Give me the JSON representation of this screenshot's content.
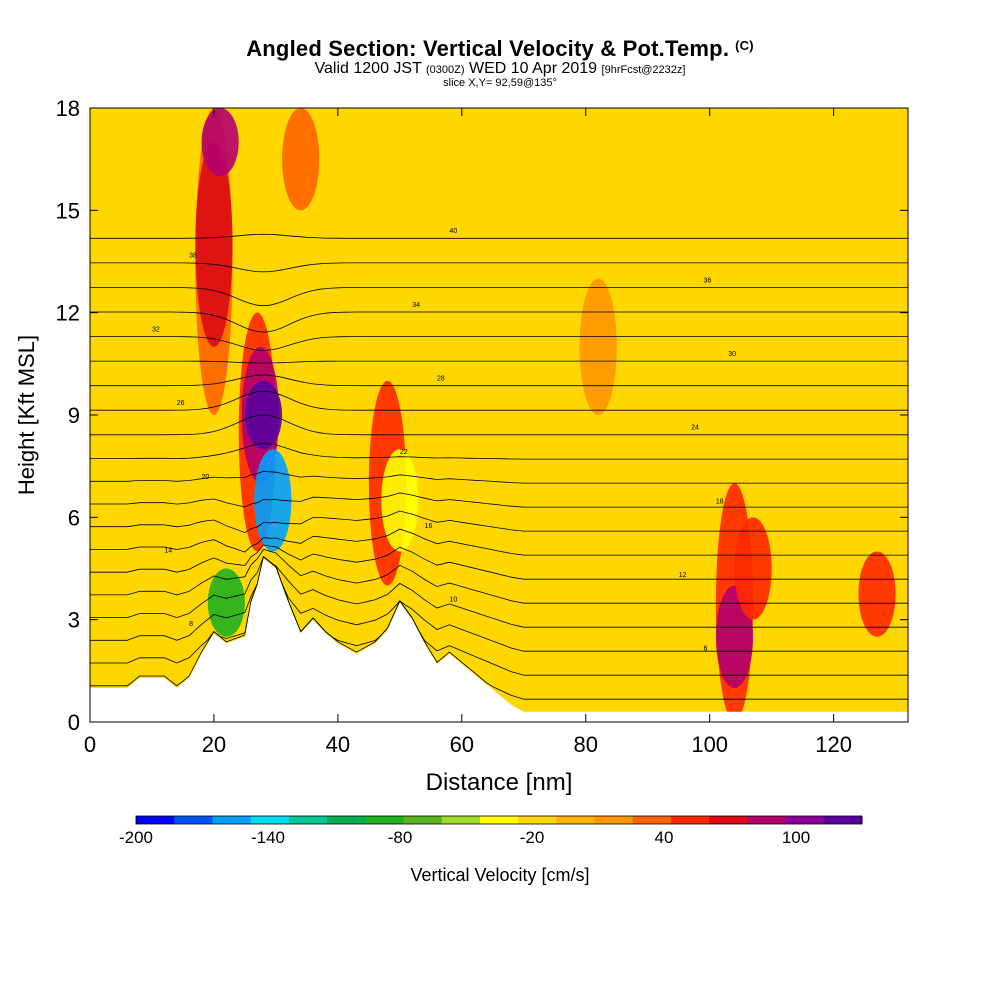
{
  "title": {
    "main": "Angled Section: Vertical Velocity & Pot.Temp.",
    "unit": "(C)",
    "valid_prefix": "Valid 1200 JST",
    "utc": "(0300Z)",
    "date": "WED 10 Apr 2019",
    "forecast": "[9hrFcst@2232z]",
    "slice": "slice X,Y= 92,59@135°"
  },
  "chart_data": {
    "type": "heatmap",
    "xlabel": "Distance [nm]",
    "ylabel": "Height [Kft MSL]",
    "xlim": [
      0,
      132
    ],
    "ylim": [
      0,
      18
    ],
    "x_ticks": [
      0,
      20,
      40,
      60,
      80,
      100,
      120
    ],
    "y_ticks": [
      0,
      3,
      6,
      9,
      12,
      15,
      18
    ],
    "colorbar": {
      "label": "Vertical Velocity [cm/s]",
      "min": -200,
      "max": 130,
      "tick_labels": [
        -200,
        -140,
        -80,
        -20,
        40,
        100
      ],
      "colors": [
        "#0000ff",
        "#0050ff",
        "#00a0ff",
        "#00ddee",
        "#00c896",
        "#00b050",
        "#20b020",
        "#5ab41e",
        "#a0dc28",
        "#ffff00",
        "#ffd700",
        "#ffb400",
        "#ff9600",
        "#ff6400",
        "#ff2800",
        "#dc0a14",
        "#b4006e",
        "#8c00a0",
        "#5a00a0"
      ]
    },
    "background_value": -10,
    "cells": [
      {
        "x": 20,
        "z0": 9,
        "z1": 18,
        "w": 40
      },
      {
        "x": 20,
        "z0": 11,
        "z1": 17,
        "w": 70
      },
      {
        "x": 21,
        "z0": 16,
        "z1": 18,
        "w": 80
      },
      {
        "x": 27,
        "z0": 5,
        "z1": 12,
        "w": 60
      },
      {
        "x": 27.5,
        "z0": 7,
        "z1": 11,
        "w": 90
      },
      {
        "x": 28,
        "z0": 8,
        "z1": 10,
        "w": 120
      },
      {
        "x": 29.5,
        "z0": 5,
        "z1": 8,
        "w": -150
      },
      {
        "x": 22,
        "z0": 2.5,
        "z1": 4.5,
        "w": -80
      },
      {
        "x": 48,
        "z0": 4,
        "z1": 10,
        "w": 50
      },
      {
        "x": 50,
        "z0": 5,
        "z1": 8,
        "w": -30
      },
      {
        "x": 34,
        "z0": 15,
        "z1": 18,
        "w": 40
      },
      {
        "x": 104,
        "z0": 0,
        "z1": 7,
        "w": 50
      },
      {
        "x": 104,
        "z0": 1,
        "z1": 4,
        "w": 80
      },
      {
        "x": 107,
        "z0": 3,
        "z1": 6,
        "w": 60
      },
      {
        "x": 127,
        "z0": 2.5,
        "z1": 5,
        "w": 50
      },
      {
        "x": 82,
        "z0": 9,
        "z1": 13,
        "w": 20
      },
      {
        "x": 110,
        "z0": 14,
        "z1": 18,
        "w": -20
      }
    ],
    "terrain": [
      {
        "x": 0,
        "h": 1.0
      },
      {
        "x": 6,
        "h": 1.0
      },
      {
        "x": 8,
        "h": 1.3
      },
      {
        "x": 12,
        "h": 1.3
      },
      {
        "x": 14,
        "h": 1.0
      },
      {
        "x": 16,
        "h": 1.3
      },
      {
        "x": 18,
        "h": 2.0
      },
      {
        "x": 20,
        "h": 2.6
      },
      {
        "x": 22,
        "h": 2.3
      },
      {
        "x": 25,
        "h": 2.5
      },
      {
        "x": 26,
        "h": 3.5
      },
      {
        "x": 27,
        "h": 4.0
      },
      {
        "x": 28,
        "h": 4.8
      },
      {
        "x": 30,
        "h": 4.5
      },
      {
        "x": 32,
        "h": 3.5
      },
      {
        "x": 34,
        "h": 2.6
      },
      {
        "x": 36,
        "h": 3.0
      },
      {
        "x": 38,
        "h": 2.6
      },
      {
        "x": 40,
        "h": 2.3
      },
      {
        "x": 43,
        "h": 2.0
      },
      {
        "x": 46,
        "h": 2.3
      },
      {
        "x": 48,
        "h": 2.7
      },
      {
        "x": 50,
        "h": 3.5
      },
      {
        "x": 52,
        "h": 3.0
      },
      {
        "x": 54,
        "h": 2.3
      },
      {
        "x": 56,
        "h": 1.7
      },
      {
        "x": 58,
        "h": 2.0
      },
      {
        "x": 60,
        "h": 1.7
      },
      {
        "x": 62,
        "h": 1.4
      },
      {
        "x": 64,
        "h": 1.1
      },
      {
        "x": 66,
        "h": 0.8
      },
      {
        "x": 68,
        "h": 0.5
      },
      {
        "x": 70,
        "h": 0.3
      },
      {
        "x": 132,
        "h": 0.3
      }
    ],
    "isentropes": [
      2,
      4,
      6,
      8,
      10,
      12,
      14,
      16,
      18,
      20,
      22,
      24,
      26,
      28,
      30,
      32,
      34,
      36,
      38,
      40
    ],
    "isentrope_spacing_kft": 0.45,
    "isentrope_base_kft": 3.5
  }
}
